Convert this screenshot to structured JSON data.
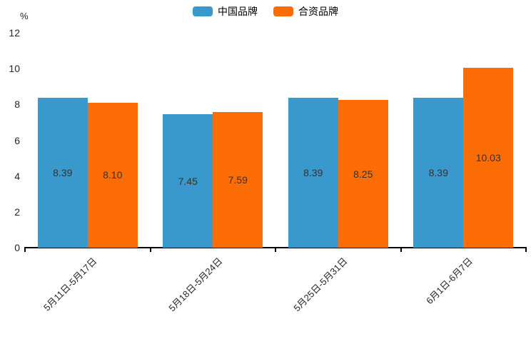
{
  "chart": {
    "background": "#ffffff",
    "axis_color": "#000000",
    "tick_label_color": "#262626",
    "value_label_color": "#333333",
    "unit_label": "%"
  },
  "chart_data": {
    "type": "bar",
    "title": "",
    "xlabel": "",
    "ylabel": "%",
    "categories": [
      "5月11日-5月17日",
      "5月18日-5月24日",
      "5月25日-5月31日",
      "6月1日-6月7日"
    ],
    "series": [
      {
        "name": "中国品牌",
        "color": "#3A99CC",
        "values": [
          8.39,
          7.45,
          8.39,
          8.39
        ]
      },
      {
        "name": "合资品牌",
        "color": "#FC6D05",
        "values": [
          8.1,
          7.59,
          8.25,
          10.03
        ]
      }
    ],
    "value_labels": [
      [
        "8.39",
        "7.45",
        "8.39",
        "8.39"
      ],
      [
        "8.10",
        "7.59",
        "8.25",
        "10.03"
      ]
    ],
    "ylim": [
      0,
      12
    ],
    "yticks": [
      0,
      2,
      4,
      6,
      8,
      10,
      12
    ],
    "grid": false,
    "legend_position": "top-center",
    "xtick_rotation_deg": 45,
    "value_labels_shown": true
  }
}
